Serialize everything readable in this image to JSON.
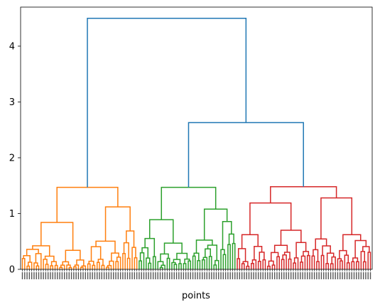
{
  "chart_data": {
    "type": "dendrogram",
    "xlabel": "points",
    "ylabel": "",
    "title": "",
    "ylim": [
      0,
      4.7
    ],
    "yticks": [
      0,
      1,
      2,
      3,
      4
    ],
    "grid": false,
    "n_leaves": 150,
    "colors": {
      "cluster1": "#ff7f0e",
      "cluster2": "#2ca02c",
      "cluster3": "#d62728",
      "above_threshold": "#1f77b4"
    },
    "top_links": [
      {
        "height": 4.5,
        "joins": [
          "cluster1",
          "cluster2+cluster3"
        ]
      },
      {
        "height": 2.63,
        "joins": [
          "cluster2",
          "cluster3"
        ]
      }
    ],
    "clusters": [
      {
        "name": "cluster1",
        "leaves": 50,
        "root_height": 1.47,
        "child_heights": [
          0.84,
          1.12
        ]
      },
      {
        "name": "cluster2",
        "leaves": 42,
        "root_height": 1.47,
        "child_heights": [
          0.89,
          1.08
        ]
      },
      {
        "name": "cluster3",
        "leaves": 58,
        "root_height": 1.48,
        "child_heights": [
          1.19,
          1.28
        ]
      }
    ]
  }
}
